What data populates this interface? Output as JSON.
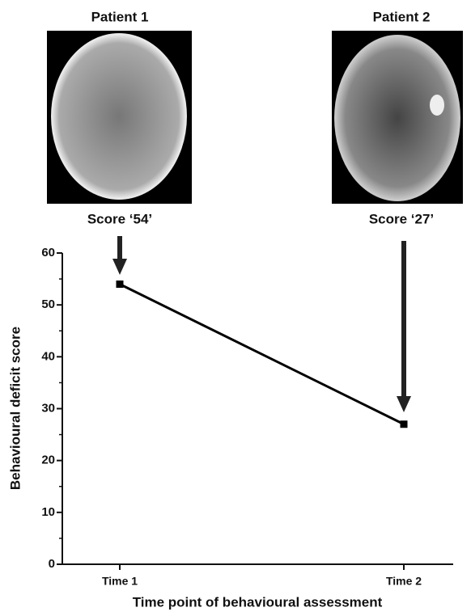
{
  "chart_data": {
    "type": "line",
    "categories": [
      "Time 1",
      "Time 2"
    ],
    "values": [
      54,
      27
    ],
    "color": "#000000",
    "ylim": [
      0,
      60
    ],
    "yticks": [
      0,
      10,
      20,
      30,
      40,
      50,
      60
    ],
    "minor_yticks": [
      5,
      15,
      25,
      35,
      45,
      55
    ],
    "ylabel": "Behavioural deficit score",
    "xlabel": "Time point of behavioural assessment",
    "annotations": [
      {
        "patient": "Patient 1",
        "score": "Score ‘54’"
      },
      {
        "patient": "Patient 2",
        "score": "Score ‘27’"
      }
    ]
  }
}
